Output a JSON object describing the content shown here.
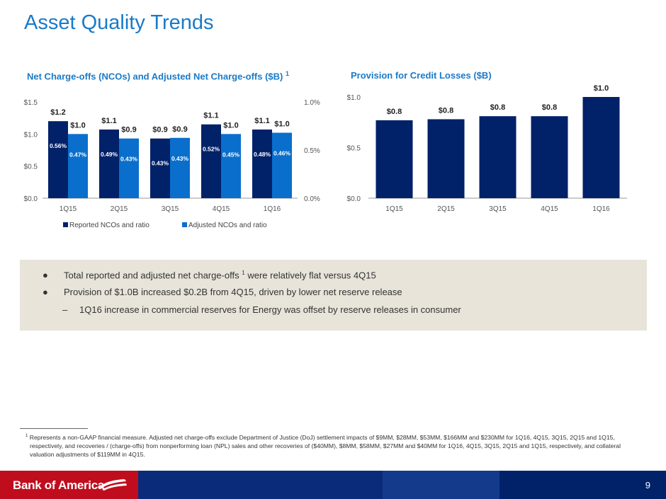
{
  "page": {
    "title": "Asset Quality Trends",
    "page_number": "9",
    "brand": "Bank of America"
  },
  "bullets": {
    "b1_text": "Total reported and adjusted net charge-offs",
    "b1_sup": "1",
    "b1_tail": "were relatively flat versus 4Q15",
    "b2_text": "Provision of $1.0B increased $0.2B from 4Q15, driven by lower net reserve release",
    "b3_text": "1Q16 increase in commercial reserves for Energy was offset by reserve releases in consumer"
  },
  "footnote": {
    "marker": "1",
    "text": "Represents a non-GAAP financial measure. Adjusted net charge-offs exclude Department of Justice (DoJ) settlement impacts of $9MM, $28MM, $53MM, $166MM and $230MM for 1Q16, 4Q15, 3Q15, 2Q15 and 1Q15, respectively, and recoveries / (charge-offs) from nonperforming loan (NPL) sales and other recoveries of ($40MM), $8MM, $58MM, $27MM and $40MM for 1Q16, 4Q15, 3Q15, 2Q15 and 1Q15, respectively, and collateral valuation adjustments of $119MM in 4Q15."
  },
  "colors": {
    "reported": "#012169",
    "adjusted": "#0a6fcc",
    "provision": "#012169",
    "accent": "#1a7ac8"
  },
  "chart_data": [
    {
      "type": "bar",
      "title": "Net Charge-offs (NCOs) and Adjusted Net Charge-offs ($B)",
      "title_sup": "1",
      "categories": [
        "1Q15",
        "2Q15",
        "3Q15",
        "4Q15",
        "1Q16"
      ],
      "ylim": [
        0,
        1.5
      ],
      "yticks": [
        "$0.0",
        "$0.5",
        "$1.0",
        "$1.5"
      ],
      "y2lim": [
        0,
        1.0
      ],
      "y2ticks": [
        "0.0%",
        "0.5%",
        "1.0%"
      ],
      "legend_position": "bottom",
      "series": [
        {
          "name": "Reported NCOs and ratio",
          "values": [
            1.2,
            1.07,
            0.93,
            1.15,
            1.07
          ],
          "value_labels": [
            "$1.2",
            "$1.1",
            "$0.9",
            "$1.1",
            "$1.1"
          ],
          "ratios": [
            "0.56%",
            "0.49%",
            "0.43%",
            "0.52%",
            "0.48%"
          ]
        },
        {
          "name": "Adjusted NCOs and ratio",
          "values": [
            1.0,
            0.93,
            0.94,
            1.0,
            1.02
          ],
          "value_labels": [
            "$1.0",
            "$0.9",
            "$0.9",
            "$1.0",
            "$1.0"
          ],
          "ratios": [
            "0.47%",
            "0.43%",
            "0.43%",
            "0.45%",
            "0.46%"
          ]
        }
      ]
    },
    {
      "type": "bar",
      "title": "Provision for Credit Losses ($B)",
      "categories": [
        "1Q15",
        "2Q15",
        "3Q15",
        "4Q15",
        "1Q16"
      ],
      "ylim": [
        0,
        1.0
      ],
      "yticks": [
        "$0.0",
        "$0.5",
        "$1.0"
      ],
      "series": [
        {
          "name": "",
          "values": [
            0.77,
            0.78,
            0.81,
            0.81,
            1.0
          ],
          "value_labels": [
            "$0.8",
            "$0.8",
            "$0.8",
            "$0.8",
            "$1.0"
          ]
        }
      ]
    }
  ]
}
